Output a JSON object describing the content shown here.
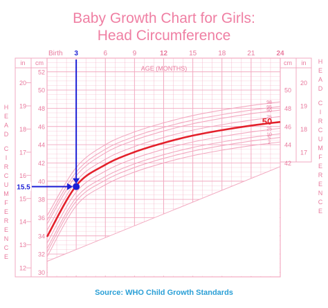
{
  "title_line1": "Baby Growth Chart for Girls:",
  "title_line2": "Head Circumference",
  "source": "Source: WHO Child Growth Standards",
  "colors": {
    "grid": "#f2a9c0",
    "text": "#e8799d",
    "median": "#e3202b",
    "marker": "#1b1fd6",
    "source": "#2a9fd6"
  },
  "chart_data": {
    "type": "line",
    "xlabel": "AGE (MONTHS)",
    "ylabel": "HEAD CIRCUMFERENCE",
    "x_ticks": [
      "Birth",
      "3",
      "6",
      "9",
      "12",
      "15",
      "18",
      "21",
      "24"
    ],
    "x_tick_values": [
      0,
      3,
      6,
      9,
      12,
      15,
      18,
      21,
      24
    ],
    "xlim": [
      0,
      24
    ],
    "cm_axis": {
      "unit": "cm",
      "ticks": [
        30,
        32,
        34,
        36,
        38,
        40,
        42,
        44,
        46,
        48,
        50,
        52
      ],
      "ylim": [
        29.5,
        53.5
      ]
    },
    "in_axis": {
      "unit": "in",
      "ticks": [
        12,
        13,
        14,
        15,
        16,
        17,
        18,
        19,
        20
      ]
    },
    "right_cm_ticks": [
      42,
      44,
      46,
      48,
      50
    ],
    "right_in_ticks": [
      17,
      18,
      19,
      20
    ],
    "series": [
      {
        "name": "98",
        "x": [
          0,
          3,
          6,
          9,
          12,
          15,
          18,
          21,
          24
        ],
        "y": [
          36.2,
          41.5,
          44.0,
          45.4,
          46.4,
          47.2,
          47.8,
          48.3,
          48.7
        ]
      },
      {
        "name": "95",
        "x": [
          0,
          3,
          6,
          9,
          12,
          15,
          18,
          21,
          24
        ],
        "y": [
          35.7,
          41.0,
          43.5,
          44.9,
          45.9,
          46.7,
          47.3,
          47.8,
          48.2
        ]
      },
      {
        "name": "90",
        "x": [
          0,
          3,
          6,
          9,
          12,
          15,
          18,
          21,
          24
        ],
        "y": [
          35.3,
          40.6,
          43.1,
          44.5,
          45.5,
          46.3,
          46.9,
          47.4,
          47.8
        ]
      },
      {
        "name": "75",
        "x": [
          0,
          3,
          6,
          9,
          12,
          15,
          18,
          21,
          24
        ],
        "y": [
          34.6,
          40.0,
          42.4,
          43.8,
          44.8,
          45.6,
          46.2,
          46.7,
          47.1
        ]
      },
      {
        "name": "50",
        "x": [
          0,
          3,
          6,
          9,
          12,
          15,
          18,
          21,
          24
        ],
        "y": [
          33.9,
          39.5,
          41.8,
          43.2,
          44.2,
          45.0,
          45.6,
          46.1,
          46.5
        ]
      },
      {
        "name": "25",
        "x": [
          0,
          3,
          6,
          9,
          12,
          15,
          18,
          21,
          24
        ],
        "y": [
          33.2,
          38.8,
          41.1,
          42.5,
          43.5,
          44.3,
          44.9,
          45.4,
          45.8
        ]
      },
      {
        "name": "10",
        "x": [
          0,
          3,
          6,
          9,
          12,
          15,
          18,
          21,
          24
        ],
        "y": [
          32.6,
          38.2,
          40.5,
          41.9,
          42.9,
          43.7,
          44.3,
          44.8,
          45.2
        ]
      },
      {
        "name": "5",
        "x": [
          0,
          3,
          6,
          9,
          12,
          15,
          18,
          21,
          24
        ],
        "y": [
          32.2,
          37.8,
          40.1,
          41.5,
          42.5,
          43.3,
          43.9,
          44.4,
          44.8
        ]
      },
      {
        "name": "2",
        "x": [
          0,
          3,
          6,
          9,
          12,
          15,
          18,
          21,
          24
        ],
        "y": [
          31.7,
          37.3,
          39.6,
          41.0,
          42.0,
          42.8,
          43.4,
          43.9,
          44.3
        ]
      }
    ],
    "highlight_series": "50",
    "annotation": {
      "x": 3,
      "y": 39.4,
      "x_label": "3",
      "y_label": "15.5",
      "percentile_label": "50"
    }
  }
}
